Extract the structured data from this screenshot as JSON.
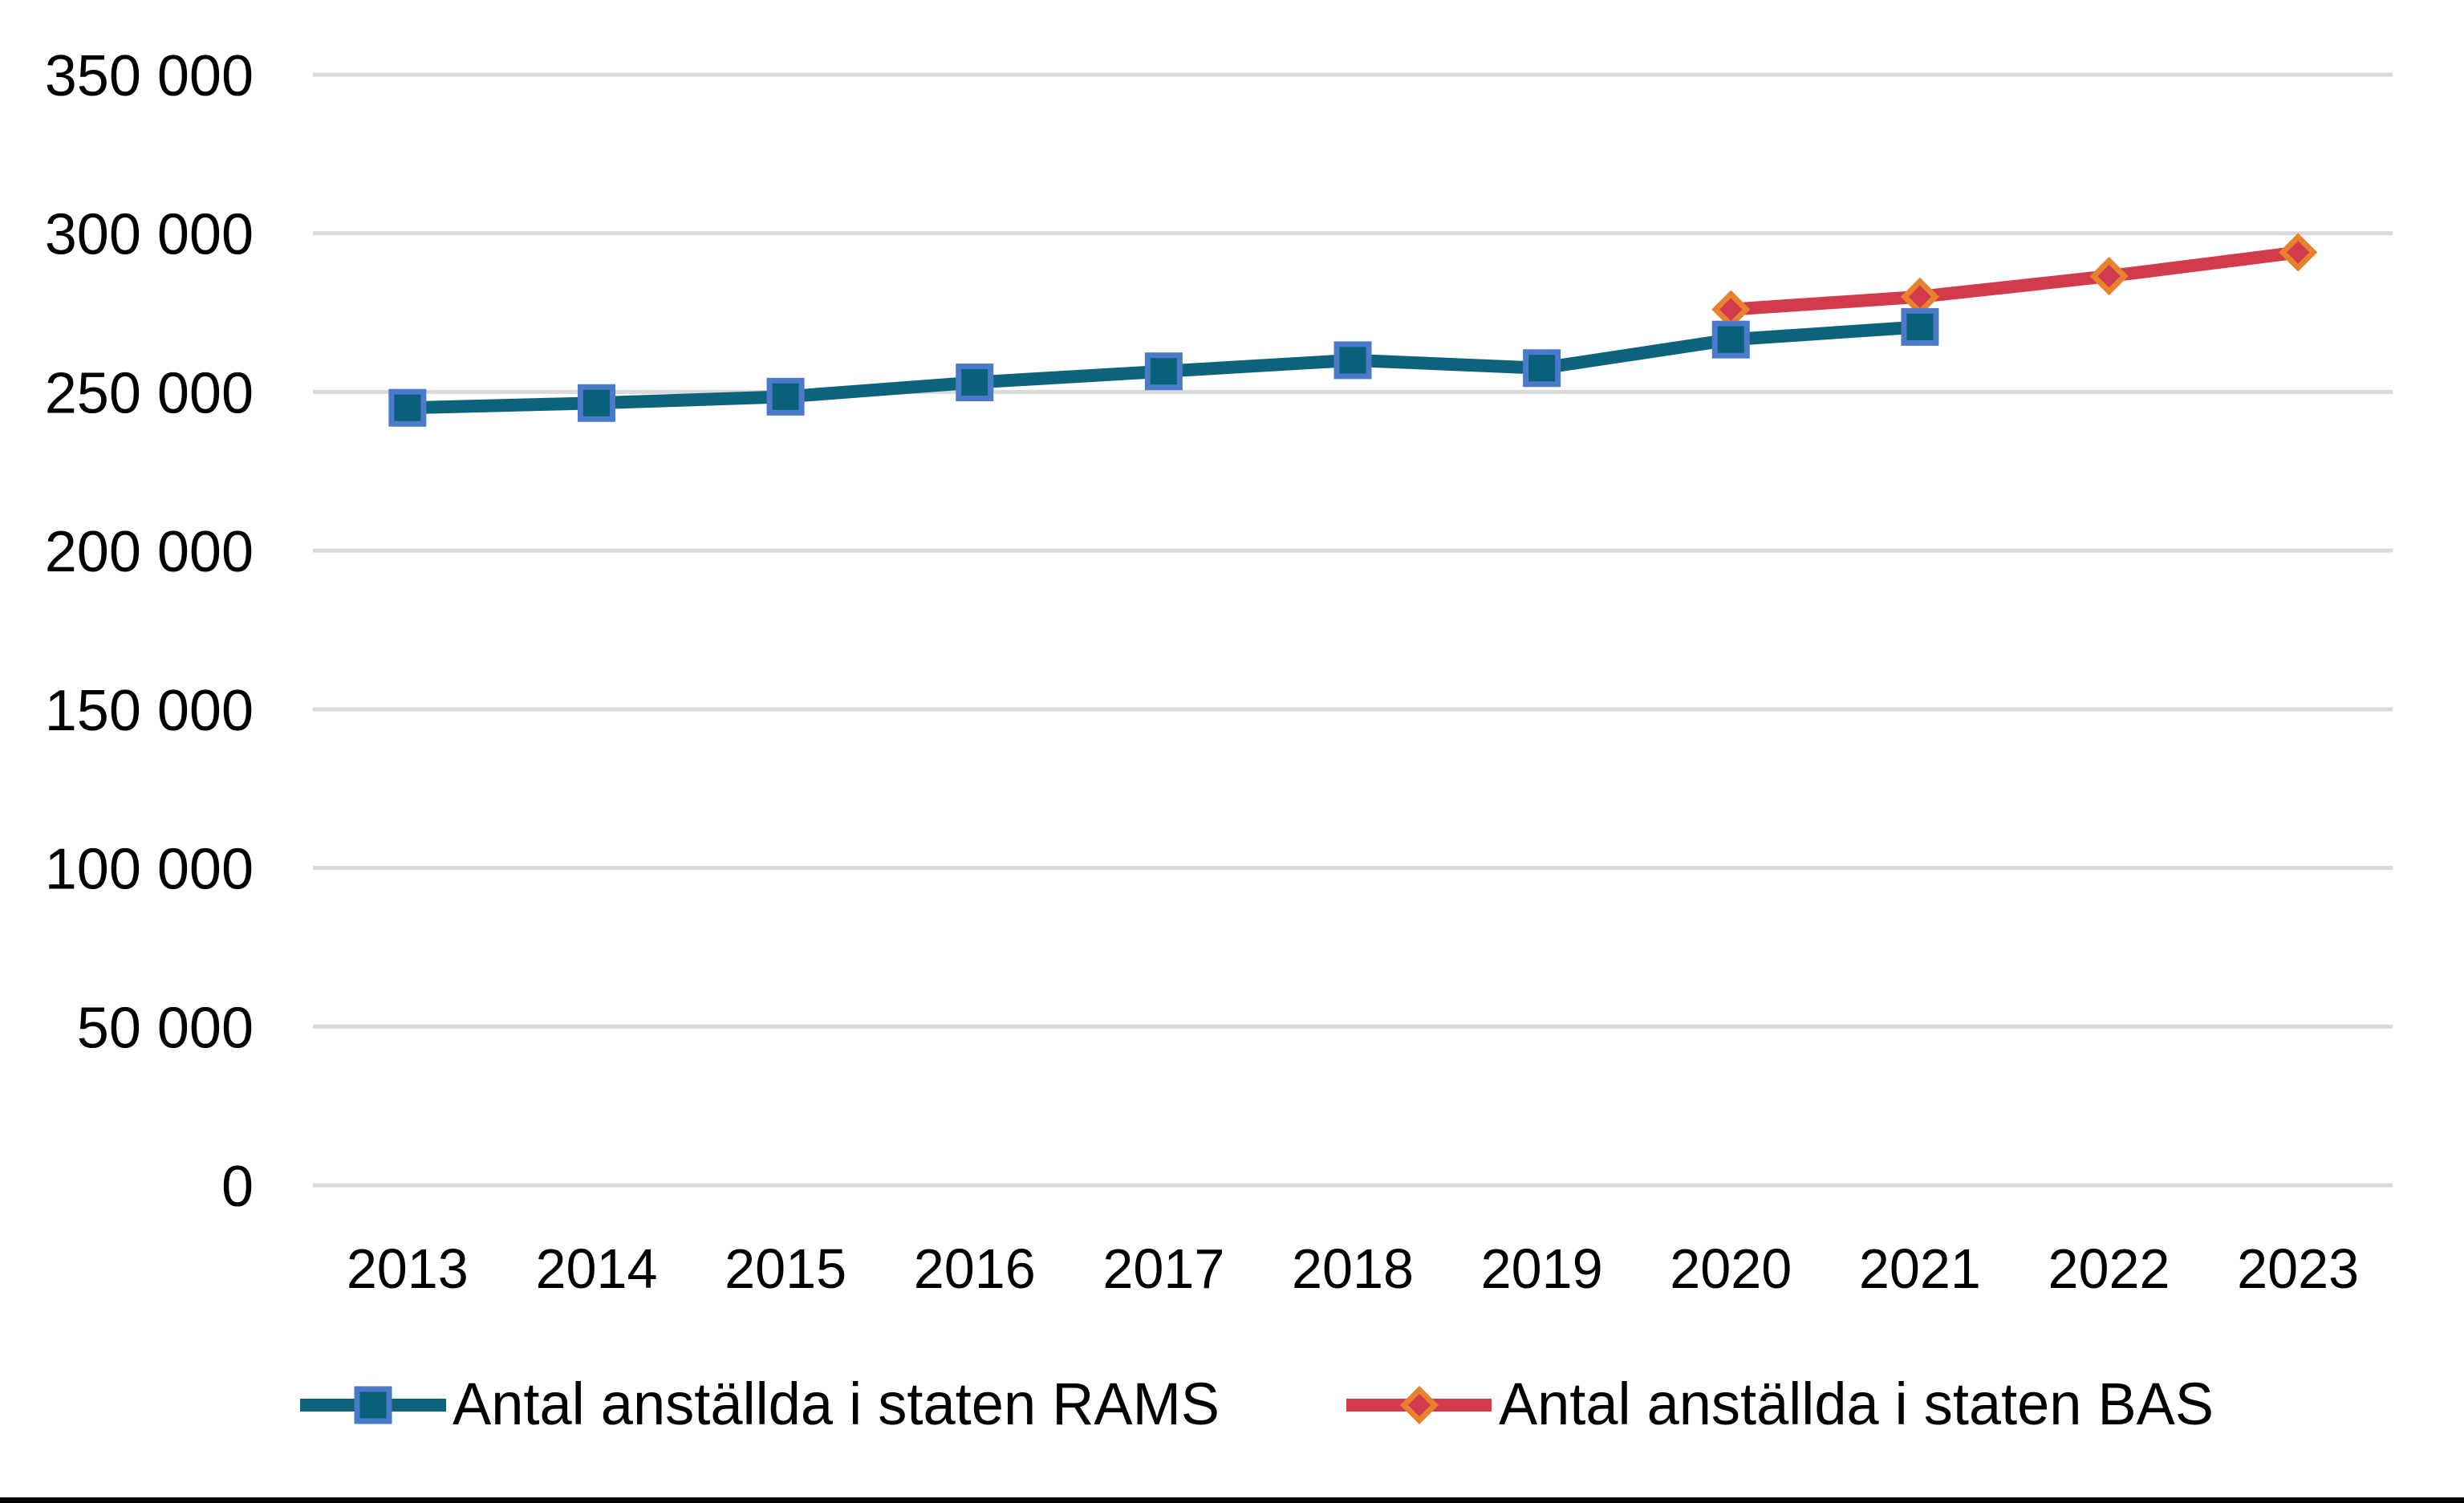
{
  "chart_data": {
    "type": "line",
    "title": "",
    "xlabel": "",
    "ylabel": "",
    "categories": [
      "2013",
      "2014",
      "2015",
      "2016",
      "2017",
      "2018",
      "2019",
      "2020",
      "2021",
      "2022",
      "2023"
    ],
    "series": [
      {
        "id": "rams",
        "name": "Antal anställda i staten RAMS",
        "marker": "square",
        "line_color": "#0D637C",
        "marker_fill": "#086079",
        "marker_border": "#4A7AC9",
        "values": [
          245000,
          246500,
          248500,
          253000,
          256500,
          260000,
          257500,
          266500,
          270500,
          null,
          null
        ]
      },
      {
        "id": "bas",
        "name": "Antal anställda i staten BAS",
        "marker": "diamond",
        "line_color": "#D23B4C",
        "marker_fill": "#D23B4C",
        "marker_border": "#E8812D",
        "values": [
          null,
          null,
          null,
          null,
          null,
          null,
          null,
          276000,
          280000,
          286500,
          294000
        ]
      }
    ],
    "ylim": [
      0,
      350000
    ],
    "ytick_step": 50000,
    "ytick_labels": [
      "0",
      "50 000",
      "100 000",
      "150 000",
      "200 000",
      "250 000",
      "300 000",
      "350 000"
    ],
    "grid": "horizontal-only",
    "legend_position": "bottom",
    "colors": {
      "grid": "#D9D9D9",
      "text": "#000000",
      "background": "#FFFFFF",
      "bottom_border": "#000000"
    }
  }
}
